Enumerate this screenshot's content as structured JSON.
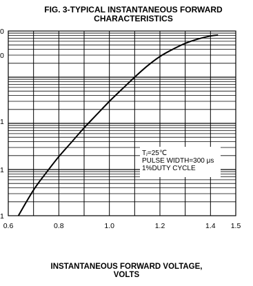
{
  "chart_data": {
    "type": "line",
    "title_line1": "FIG. 3-TYPICAL INSTANTANEOUS FORWARD",
    "title_line2": "CHARACTERISTICS",
    "xlabel_line1": "INSTANTANEOUS FORWARD VOLTAGE,",
    "xlabel_line2": "VOLTS",
    "x_ticks": [
      "0.6",
      "0.8",
      "1.0",
      "1.2",
      "1.4",
      "1.5"
    ],
    "x_tick_values": [
      0.6,
      0.8,
      1.0,
      1.2,
      1.4,
      1.5
    ],
    "xlim": [
      0.6,
      1.5
    ],
    "yscale": "log",
    "ylim": [
      0.01,
      100
    ],
    "y_tick_labels_visible": [
      "0",
      "0",
      "1",
      "1",
      "1"
    ],
    "annotation": {
      "line1": "Tⱼ=25℃",
      "line2": "PULSE WIDTH=300 μs",
      "line3": "1%DUTY CYCLE"
    },
    "series": [
      {
        "x": [
          0.64,
          0.7,
          0.75,
          0.8,
          0.85,
          0.9,
          0.95,
          1.0,
          1.05,
          1.1,
          1.15,
          1.2,
          1.25,
          1.3,
          1.35,
          1.4,
          1.43
        ],
        "y": [
          0.01,
          0.036,
          0.085,
          0.19,
          0.39,
          0.8,
          1.55,
          3.0,
          5.5,
          10,
          17.5,
          28,
          40,
          54,
          67,
          78,
          82
        ]
      }
    ],
    "grid": true,
    "colors": {
      "line": "#000000",
      "grid": "#000000"
    }
  }
}
